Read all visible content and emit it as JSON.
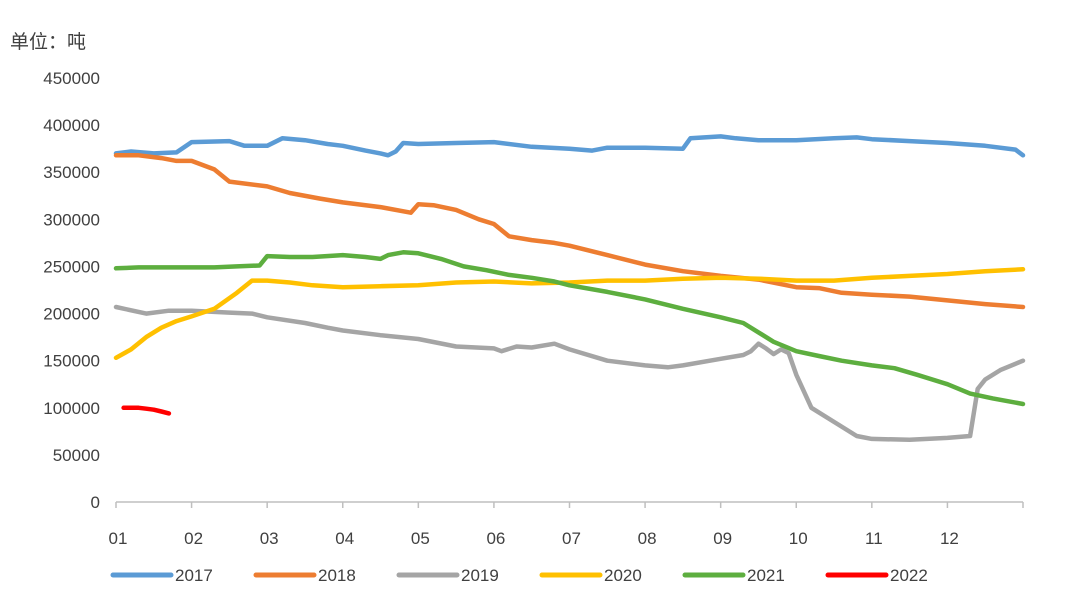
{
  "chart_data": {
    "type": "line",
    "unit_label": "单位：吨",
    "y_ticks": [
      "0",
      "50000",
      "100000",
      "150000",
      "200000",
      "250000",
      "300000",
      "350000",
      "400000",
      "450000"
    ],
    "ylim": [
      0,
      450000
    ],
    "x_ticks": [
      "01",
      "02",
      "03",
      "04",
      "05",
      "06",
      "07",
      "08",
      "09",
      "10",
      "11",
      "12"
    ],
    "xlim": [
      1,
      13
    ],
    "grid": false,
    "legend_position": "bottom",
    "series": [
      {
        "name": "2017",
        "color": "#5B9BD5",
        "x": [
          1,
          1.2,
          1.5,
          1.8,
          2.0,
          2.5,
          2.7,
          3.0,
          3.2,
          3.5,
          3.8,
          4.0,
          4.3,
          4.5,
          4.6,
          4.7,
          4.8,
          5.0,
          5.5,
          6.0,
          6.5,
          7.0,
          7.3,
          7.5,
          8.0,
          8.5,
          8.6,
          9.0,
          9.2,
          9.5,
          10.0,
          10.5,
          10.8,
          11.0,
          11.5,
          12.0,
          12.5,
          12.9,
          13.0
        ],
        "y": [
          370000,
          372000,
          370000,
          371000,
          382000,
          383000,
          378000,
          378000,
          386000,
          384000,
          380000,
          378000,
          373000,
          370000,
          368000,
          372000,
          381000,
          380000,
          381000,
          382000,
          377000,
          375000,
          373000,
          376000,
          376000,
          375000,
          386000,
          388000,
          386000,
          384000,
          384000,
          386000,
          387000,
          385000,
          383000,
          381000,
          378000,
          374000,
          368000
        ]
      },
      {
        "name": "2018",
        "color": "#ED7D31",
        "x": [
          1,
          1.3,
          1.6,
          1.8,
          2.0,
          2.3,
          2.5,
          3.0,
          3.3,
          3.7,
          4.0,
          4.5,
          4.9,
          5.0,
          5.2,
          5.5,
          5.8,
          6.0,
          6.2,
          6.5,
          6.8,
          7.0,
          7.5,
          8.0,
          8.5,
          9.0,
          9.5,
          10.0,
          10.3,
          10.6,
          11.0,
          11.5,
          12.0,
          12.5,
          13.0
        ],
        "y": [
          368000,
          368000,
          365000,
          362000,
          362000,
          353000,
          340000,
          335000,
          328000,
          322000,
          318000,
          313000,
          307000,
          316000,
          315000,
          310000,
          300000,
          295000,
          282000,
          278000,
          275000,
          272000,
          262000,
          252000,
          245000,
          240000,
          236000,
          228000,
          227000,
          222000,
          220000,
          218000,
          214000,
          210000,
          207000
        ]
      },
      {
        "name": "2019",
        "color": "#A5A5A5",
        "x": [
          1,
          1.4,
          1.7,
          2.0,
          2.5,
          2.8,
          3.0,
          3.5,
          3.8,
          4.0,
          4.5,
          5.0,
          5.5,
          6.0,
          6.1,
          6.3,
          6.5,
          6.8,
          7.0,
          7.5,
          8.0,
          8.3,
          8.5,
          9.0,
          9.3,
          9.4,
          9.5,
          9.6,
          9.7,
          9.8,
          9.9,
          10.0,
          10.2,
          10.5,
          10.8,
          11.0,
          11.5,
          12.0,
          12.3,
          12.4,
          12.5,
          12.7,
          13.0
        ],
        "y": [
          207000,
          200000,
          203000,
          203000,
          201000,
          200000,
          196000,
          190000,
          185000,
          182000,
          177000,
          173000,
          165000,
          163000,
          160000,
          165000,
          164000,
          168000,
          162000,
          150000,
          145000,
          143000,
          145000,
          152000,
          156000,
          160000,
          168000,
          163000,
          157000,
          162000,
          158000,
          135000,
          100000,
          85000,
          70000,
          67000,
          66000,
          68000,
          70000,
          120000,
          130000,
          140000,
          150000
        ]
      },
      {
        "name": "2020",
        "color": "#FFC000",
        "x": [
          1,
          1.2,
          1.4,
          1.6,
          1.8,
          2.0,
          2.3,
          2.6,
          2.8,
          3.0,
          3.3,
          3.6,
          4.0,
          4.5,
          5.0,
          5.5,
          6.0,
          6.5,
          7.0,
          7.5,
          8.0,
          8.5,
          9.0,
          9.5,
          10.0,
          10.5,
          11.0,
          11.5,
          12.0,
          12.5,
          13.0
        ],
        "y": [
          153000,
          162000,
          175000,
          185000,
          192000,
          197000,
          205000,
          222000,
          235000,
          235000,
          233000,
          230000,
          228000,
          229000,
          230000,
          233000,
          234000,
          232000,
          233000,
          235000,
          235000,
          237000,
          238000,
          237000,
          235000,
          235000,
          238000,
          240000,
          242000,
          245000,
          247000
        ]
      },
      {
        "name": "2021",
        "color": "#5DAE3F",
        "x": [
          1,
          1.3,
          1.6,
          2.0,
          2.3,
          2.6,
          2.9,
          3.0,
          3.3,
          3.6,
          4.0,
          4.3,
          4.5,
          4.6,
          4.8,
          5.0,
          5.3,
          5.6,
          5.9,
          6.2,
          6.5,
          6.8,
          7.0,
          7.5,
          8.0,
          8.5,
          9.0,
          9.3,
          9.5,
          9.7,
          10.0,
          10.3,
          10.6,
          11.0,
          11.3,
          11.6,
          12.0,
          12.3,
          12.6,
          13.0
        ],
        "y": [
          248000,
          249000,
          249000,
          249000,
          249000,
          250000,
          251000,
          261000,
          260000,
          260000,
          262000,
          260000,
          258000,
          262000,
          265000,
          264000,
          258000,
          250000,
          246000,
          241000,
          238000,
          234000,
          230000,
          223000,
          215000,
          205000,
          196000,
          190000,
          180000,
          170000,
          160000,
          155000,
          150000,
          145000,
          142000,
          135000,
          125000,
          115000,
          110000,
          104000
        ]
      },
      {
        "name": "2022",
        "color": "#FF0000",
        "x": [
          1.1,
          1.2,
          1.3,
          1.4,
          1.5,
          1.6,
          1.7
        ],
        "y": [
          100000,
          100000,
          100000,
          99000,
          98000,
          96000,
          94000
        ]
      }
    ]
  }
}
